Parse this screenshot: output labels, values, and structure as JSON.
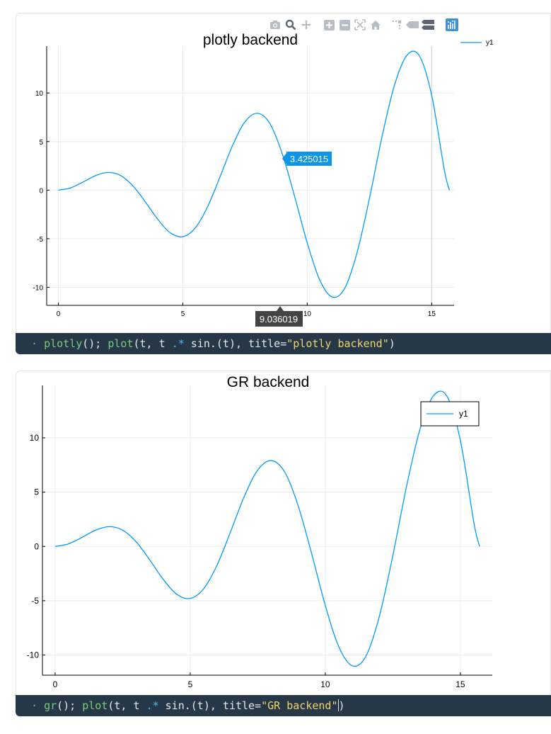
{
  "cell1": {
    "code": {
      "bullet": "·",
      "fn1": "plotly",
      "p1": "(); ",
      "fn2": "plot",
      "p2": "(t, t ",
      "op": ".*",
      "p3": " sin.(t), title=",
      "str": "\"plotly backend\"",
      "p4": ")"
    },
    "modebar_icons": [
      "camera-icon",
      "zoom-icon",
      "pan-icon",
      "zoom-in-icon",
      "zoom-out-icon",
      "autoscale-icon",
      "home-icon",
      "spike-lines-icon",
      "hover-closest-icon",
      "hover-compare-icon",
      "plotly-logo-icon"
    ],
    "hover": {
      "y_label": "3.425015",
      "x_label": "9.036019"
    }
  },
  "cell2": {
    "code": {
      "bullet": "·",
      "fn1": "gr",
      "p1": "(); ",
      "fn2": "plot",
      "p2": "(t, t ",
      "op": ".*",
      "p3": " sin.(t), title=",
      "str": "\"GR backend\"",
      "p4": ")"
    }
  },
  "colors": {
    "series": "#009af9",
    "code_bg": "#263848",
    "hover_x_bg": "#444444"
  },
  "chart_data": [
    {
      "type": "line",
      "title": "plotly backend",
      "xlabel": "",
      "ylabel": "",
      "xlim": [
        -0.47,
        15.9
      ],
      "ylim": [
        -11.86,
        14.83
      ],
      "x_ticks": [
        0,
        5,
        10,
        15
      ],
      "x_tick_labels": [
        "0",
        "5",
        "10",
        "15"
      ],
      "y_ticks": [
        -10,
        -5,
        0,
        5,
        10
      ],
      "y_tick_labels": [
        "-10",
        "-5",
        "0",
        "5",
        "10"
      ],
      "grid": true,
      "legend": "top-right",
      "series": [
        {
          "name": "y1",
          "x": [
            0,
            0.5,
            1,
            1.5,
            2,
            2.5,
            3,
            3.5,
            4,
            4.5,
            5,
            5.5,
            6,
            6.5,
            7,
            7.5,
            8,
            8.5,
            9,
            9.5,
            10,
            10.5,
            11,
            11.5,
            12,
            12.5,
            13,
            13.5,
            14,
            14.5,
            15,
            15.5,
            15.71
          ],
          "y": [
            0,
            0.24,
            0.84,
            1.5,
            1.82,
            1.5,
            0.42,
            -1.23,
            -3.03,
            -4.4,
            -4.79,
            -3.89,
            -1.68,
            1.4,
            4.6,
            7.04,
            7.91,
            6.84,
            3.71,
            -0.72,
            -5.44,
            -9.24,
            -11.0,
            -10.12,
            -6.44,
            -0.83,
            5.46,
            10.76,
            13.87,
            13.84,
            9.75,
            2.17,
            0
          ]
        }
      ]
    },
    {
      "type": "line",
      "title": "GR backend",
      "xlabel": "",
      "ylabel": "",
      "xlim": [
        -0.47,
        16.18
      ],
      "ylim": [
        -11.86,
        14.83
      ],
      "x_ticks": [
        0,
        5,
        10,
        15
      ],
      "x_tick_labels": [
        "0",
        "5",
        "10",
        "15"
      ],
      "y_ticks": [
        -10,
        -5,
        0,
        5,
        10
      ],
      "y_tick_labels": [
        "-10",
        "-5",
        "0",
        "5",
        "10"
      ],
      "grid": true,
      "legend": "top-right",
      "series": [
        {
          "name": "y1",
          "x": [
            0,
            0.5,
            1,
            1.5,
            2,
            2.5,
            3,
            3.5,
            4,
            4.5,
            5,
            5.5,
            6,
            6.5,
            7,
            7.5,
            8,
            8.5,
            9,
            9.5,
            10,
            10.5,
            11,
            11.5,
            12,
            12.5,
            13,
            13.5,
            14,
            14.5,
            15,
            15.5,
            15.71
          ],
          "y": [
            0,
            0.24,
            0.84,
            1.5,
            1.82,
            1.5,
            0.42,
            -1.23,
            -3.03,
            -4.4,
            -4.79,
            -3.89,
            -1.68,
            1.4,
            4.6,
            7.04,
            7.91,
            6.84,
            3.71,
            -0.72,
            -5.44,
            -9.24,
            -11.0,
            -10.12,
            -6.44,
            -0.83,
            5.46,
            10.76,
            13.87,
            13.84,
            9.75,
            2.17,
            0
          ]
        }
      ]
    }
  ]
}
